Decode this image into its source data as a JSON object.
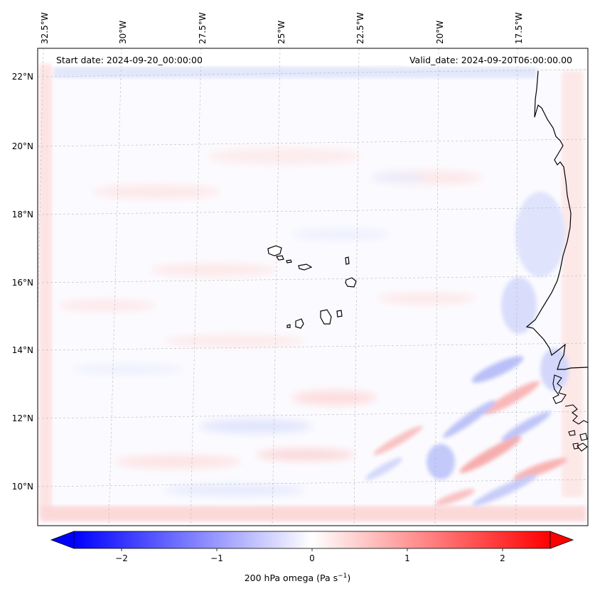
{
  "header": {
    "start_date": "Start date: 2024-09-20_00:00:00",
    "valid_date": "Valid_date: 2024-09-20T06:00:00.00"
  },
  "map": {
    "lon_ticks": [
      "32.5°W",
      "30°W",
      "27.5°W",
      "25°W",
      "22.5°W",
      "20°W",
      "17.5°W"
    ],
    "lat_ticks": [
      "22°N",
      "20°N",
      "18°N",
      "16°N",
      "14°N",
      "12°N",
      "10°N"
    ],
    "gridlines": true,
    "coastline_color": "#000000"
  },
  "colorbar": {
    "ticks": [
      "−2",
      "−1",
      "0",
      "1",
      "2"
    ],
    "tick_values": [
      -2,
      -1,
      0,
      1,
      2
    ],
    "range": [
      -2.5,
      2.5
    ],
    "extend": "both",
    "colormap": "bwr",
    "low_color": "#0000ff",
    "mid_color": "#ffffff",
    "high_color": "#ff0000",
    "label_main": "200 hPa omega (Pa s",
    "label_exp": "−1",
    "label_tail": ")"
  }
}
